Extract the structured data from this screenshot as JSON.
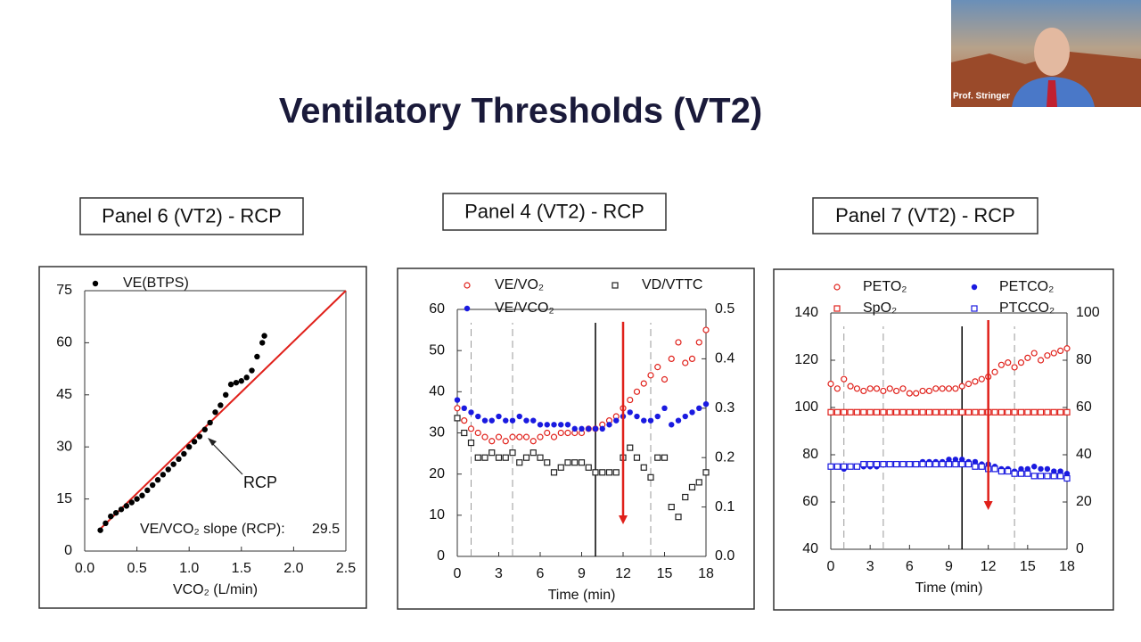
{
  "slide": {
    "title": "Ventilatory Thresholds (VT2)"
  },
  "video": {
    "label": "Prof. Stringer"
  },
  "chart_data": [
    {
      "type": "scatter",
      "title": "Panel 6 (VT2) - RCP",
      "xlabel": "VCO₂ (L/min)",
      "xlim": [
        0,
        2.5
      ],
      "xticks": [
        {
          "value": 0,
          "label": "0.0"
        },
        0.5,
        {
          "value": 1,
          "label": "1.0"
        },
        1.5,
        {
          "value": 2,
          "label": "2.0"
        },
        2.5
      ],
      "ylim": [
        0,
        75
      ],
      "yticks": [
        0,
        15,
        30,
        45,
        60,
        75
      ],
      "x": [
        0.15,
        0.2,
        0.25,
        0.3,
        0.35,
        0.4,
        0.45,
        0.5,
        0.55,
        0.6,
        0.65,
        0.7,
        0.75,
        0.8,
        0.85,
        0.9,
        0.95,
        1.0,
        1.05,
        1.1,
        1.15,
        1.2,
        1.25,
        1.3,
        1.35,
        1.4,
        1.45,
        1.5,
        1.55,
        1.6,
        1.65,
        1.7,
        1.72
      ],
      "series": [
        {
          "name": "VE(BTPS)",
          "color": "#000000",
          "marker": "dot",
          "values": [
            6,
            8,
            10,
            11,
            12,
            13,
            14,
            15,
            16,
            17.5,
            19,
            20.5,
            22,
            23.5,
            25,
            26.5,
            28,
            30,
            31.5,
            33,
            35,
            37,
            40,
            42,
            45,
            48,
            48.5,
            49,
            50,
            52,
            56,
            60,
            62
          ]
        }
      ],
      "fit_line": {
        "color": "#e0201a",
        "x": [
          0.15,
          2.5
        ],
        "y": [
          6.4,
          75
        ]
      },
      "annotation": "RCP",
      "slope_label": "VE/VCO₂ slope (RCP):",
      "slope": 29.5
    },
    {
      "type": "scatter",
      "title": "Panel 4 (VT2) - RCP",
      "xlabel": "Time (min)",
      "xlim": [
        0,
        18
      ],
      "xticks": [
        0,
        3,
        6,
        9,
        12,
        15,
        18
      ],
      "ylim": [
        0,
        60
      ],
      "yticks": [
        0,
        10,
        20,
        30,
        40,
        50,
        60
      ],
      "y2lim": [
        0,
        0.5
      ],
      "y2ticks": [
        {
          "value": 0,
          "label": "0.0"
        },
        0.1,
        0.2,
        0.3,
        0.4,
        0.5
      ],
      "x": [
        0,
        0.5,
        1,
        1.5,
        2,
        2.5,
        3,
        3.5,
        4,
        4.5,
        5,
        5.5,
        6,
        6.5,
        7,
        7.5,
        8,
        8.5,
        9,
        9.5,
        10,
        10.5,
        11,
        11.5,
        12,
        12.5,
        13,
        13.5,
        14,
        14.5,
        15,
        15.5,
        16,
        16.5,
        17,
        17.5,
        18
      ],
      "series": [
        {
          "name": "VE/VO₂",
          "color": "#e0201a",
          "marker": "circle",
          "values": [
            36,
            33,
            31,
            30,
            29,
            28,
            29,
            28,
            29,
            29,
            29,
            28,
            29,
            30,
            29,
            30,
            30,
            30,
            30,
            31,
            31,
            32,
            33,
            34,
            36,
            38,
            40,
            42,
            44,
            46,
            43,
            48,
            52,
            47,
            48,
            52,
            55
          ]
        },
        {
          "name": "VE/VCO₂",
          "color": "#1a1ae0",
          "marker": "dot",
          "values": [
            38,
            36,
            35,
            34,
            33,
            33,
            34,
            33,
            33,
            34,
            33,
            33,
            32,
            32,
            32,
            32,
            32,
            31,
            31,
            31,
            31,
            31,
            32,
            33,
            34,
            35,
            34,
            33,
            33,
            34,
            36,
            32,
            33,
            34,
            35,
            36,
            37
          ]
        },
        {
          "name": "VD/VTTC",
          "color": "#222222",
          "marker": "square",
          "axis": "y2",
          "values": [
            0.28,
            0.25,
            0.23,
            0.2,
            0.2,
            0.21,
            0.2,
            0.2,
            0.21,
            0.19,
            0.2,
            0.21,
            0.2,
            0.19,
            0.17,
            0.18,
            0.19,
            0.19,
            0.19,
            0.18,
            0.17,
            0.17,
            0.17,
            0.17,
            0.2,
            0.22,
            0.2,
            0.18,
            0.16,
            0.2,
            0.2,
            0.1,
            0.08,
            0.12,
            0.14,
            0.15,
            0.17
          ]
        }
      ],
      "dashed_lines": [
        1,
        4,
        14
      ],
      "solid_line": 10,
      "arrow": {
        "color": "#e0201a",
        "x": 12,
        "y": [
          57,
          7.8
        ]
      }
    },
    {
      "type": "scatter",
      "title": "Panel 7 (VT2) - RCP",
      "xlabel": "Time (min)",
      "xlim": [
        0,
        18
      ],
      "xticks": [
        0,
        3,
        6,
        9,
        12,
        15,
        18
      ],
      "ylim": [
        40,
        140
      ],
      "yticks": [
        40,
        60,
        80,
        100,
        120,
        140
      ],
      "y2lim": [
        0,
        100
      ],
      "y2ticks": [
        0,
        20,
        40,
        60,
        80,
        100
      ],
      "x": [
        0,
        0.5,
        1,
        1.5,
        2,
        2.5,
        3,
        3.5,
        4,
        4.5,
        5,
        5.5,
        6,
        6.5,
        7,
        7.5,
        8,
        8.5,
        9,
        9.5,
        10,
        10.5,
        11,
        11.5,
        12,
        12.5,
        13,
        13.5,
        14,
        14.5,
        15,
        15.5,
        16,
        16.5,
        17,
        17.5,
        18
      ],
      "series": [
        {
          "name": "PETO₂",
          "color": "#e0201a",
          "marker": "circle",
          "values": [
            110,
            108,
            112,
            109,
            108,
            107,
            108,
            108,
            107,
            108,
            107,
            108,
            106,
            106,
            107,
            107,
            108,
            108,
            108,
            108,
            109,
            110,
            111,
            112,
            113,
            115,
            118,
            119,
            117,
            119,
            121,
            123,
            120,
            122,
            123,
            124,
            125
          ]
        },
        {
          "name": "SpO₂",
          "color": "#e0201a",
          "marker": "square",
          "values": [
            98,
            98,
            98,
            98,
            98,
            98,
            98,
            98,
            98,
            98,
            98,
            98,
            98,
            98,
            98,
            98,
            98,
            98,
            98,
            98,
            98,
            98,
            98,
            98,
            98,
            98,
            98,
            98,
            98,
            98,
            98,
            98,
            98,
            98,
            98,
            98,
            98
          ]
        },
        {
          "name": "PETCO₂",
          "color": "#1a1ae0",
          "marker": "dot",
          "axis": "y2",
          "values": [
            35,
            35,
            34,
            35,
            35,
            35,
            35,
            35,
            36,
            36,
            36,
            36,
            36,
            36,
            37,
            37,
            37,
            37,
            38,
            38,
            38,
            37,
            37,
            36,
            36,
            35,
            34,
            34,
            33,
            34,
            34,
            35,
            34,
            34,
            33,
            33,
            32
          ]
        },
        {
          "name": "PTCCO₂",
          "color": "#1a1ae0",
          "marker": "square",
          "axis": "y2",
          "values": [
            35,
            35,
            35,
            35,
            35,
            36,
            36,
            36,
            36,
            36,
            36,
            36,
            36,
            36,
            36,
            36,
            36,
            36,
            36,
            36,
            36,
            36,
            35,
            35,
            34,
            34,
            33,
            33,
            32,
            32,
            32,
            31,
            31,
            31,
            31,
            31,
            30
          ]
        }
      ],
      "dashed_lines": [
        1,
        4,
        14
      ],
      "solid_line": 10,
      "arrow": {
        "color": "#e0201a",
        "x": 12,
        "y": [
          137,
          56.6
        ]
      }
    }
  ]
}
